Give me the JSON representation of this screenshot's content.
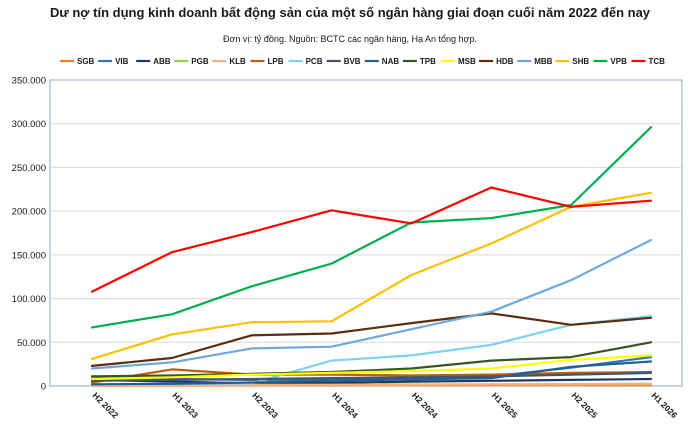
{
  "chart_data": {
    "type": "line",
    "title": "Dư nợ tín dụng kinh doanh bất động sản của một số ngân hàng giai đoạn cuối năm 2022 đến nay",
    "subtitle": "Đơn vị: tỷ đồng. Nguồn: BCTC các ngân hàng, Hạ An tổng hợp.",
    "categories": [
      "H2 2022",
      "H1 2023",
      "H2 2023",
      "H1 2024",
      "H2 2024",
      "H1 2025",
      "H2 2025",
      "H1 2026"
    ],
    "y_tick_labels": [
      "0",
      "50.000",
      "100.000",
      "150.000",
      "200.000",
      "250.000",
      "300.000",
      "350.000"
    ],
    "ylim": [
      0,
      350000
    ],
    "grid": true,
    "legend_position": "top",
    "series": [
      {
        "name": "SGB",
        "color": "#ED7D31",
        "values": [
          500,
          500,
          600,
          600,
          700,
          700,
          800,
          800
        ]
      },
      {
        "name": "VIB",
        "color": "#2E75B6",
        "values": [
          9000,
          8000,
          7000,
          7500,
          9000,
          11000,
          21000,
          33000
        ]
      },
      {
        "name": "ABB",
        "color": "#1F3864",
        "values": [
          7000,
          5000,
          3000,
          3500,
          5000,
          6000,
          7000,
          8000
        ]
      },
      {
        "name": "PGB",
        "color": "#92D050",
        "values": [
          1000,
          1200,
          1300,
          1500,
          1700,
          1800,
          2000,
          2200
        ]
      },
      {
        "name": "KLB",
        "color": "#F4B183",
        "values": [
          500,
          700,
          900,
          1100,
          1400,
          1800,
          2200,
          2600
        ]
      },
      {
        "name": "LPB",
        "color": "#C55A11",
        "values": [
          4000,
          19000,
          13000,
          13000,
          12000,
          13000,
          15000,
          16000
        ]
      },
      {
        "name": "PCB",
        "color": "#7FD1F0",
        "values": [
          2000,
          2500,
          3000,
          29000,
          35000,
          47000,
          70000,
          80000
        ]
      },
      {
        "name": "BVB",
        "color": "#44546A",
        "values": [
          6000,
          7000,
          8000,
          9000,
          10000,
          11000,
          13000,
          15000
        ]
      },
      {
        "name": "NAB",
        "color": "#255E91",
        "values": [
          2000,
          2500,
          4000,
          6000,
          7500,
          9000,
          22000,
          28000
        ]
      },
      {
        "name": "TPB",
        "color": "#375623",
        "values": [
          11000,
          12000,
          14000,
          16000,
          20000,
          29000,
          33000,
          50000
        ]
      },
      {
        "name": "MSB",
        "color": "#FFFF00",
        "values": [
          8000,
          10000,
          13000,
          15000,
          17000,
          20000,
          30000,
          35000
        ]
      },
      {
        "name": "HDB",
        "color": "#5B2D0E",
        "values": [
          23000,
          32000,
          58000,
          60000,
          72000,
          83000,
          70000,
          78000
        ]
      },
      {
        "name": "MBB",
        "color": "#6FA8DC",
        "values": [
          20000,
          27000,
          43000,
          45000,
          65000,
          85000,
          121000,
          167000
        ]
      },
      {
        "name": "SHB",
        "color": "#FFC000",
        "values": [
          31000,
          59000,
          73000,
          74000,
          127000,
          163000,
          205000,
          221000
        ]
      },
      {
        "name": "VPB",
        "color": "#00B050",
        "values": [
          67000,
          82000,
          114000,
          140000,
          187000,
          192000,
          207000,
          296000
        ]
      },
      {
        "name": "TCB",
        "color": "#FF0000",
        "values": [
          108000,
          153000,
          176000,
          201000,
          186000,
          227000,
          205000,
          212000
        ]
      }
    ]
  }
}
